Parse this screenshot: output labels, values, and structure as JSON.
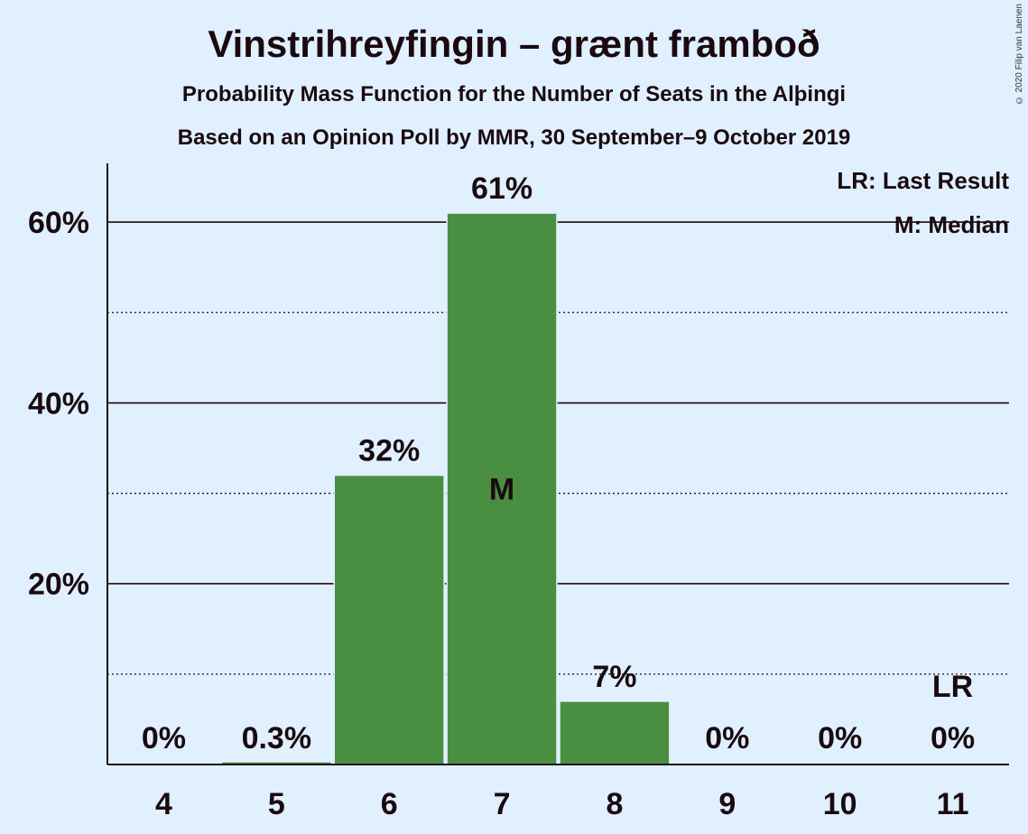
{
  "title": "Vinstrihreyfingin – grænt framboð",
  "subtitle": "Probability Mass Function for the Number of Seats in the Alþingi",
  "subtitle2": "Based on an Opinion Poll by MMR, 30 September–9 October 2019",
  "copyright": "© 2020 Filip van Laenen",
  "legend": {
    "last_result": "LR: Last Result",
    "median": "M: Median"
  },
  "colors": {
    "bar": "#4a8f41",
    "background": "#e1f0ff",
    "text": "#1a0a0f"
  },
  "chart_data": {
    "type": "bar",
    "categories": [
      "4",
      "5",
      "6",
      "7",
      "8",
      "9",
      "10",
      "11"
    ],
    "values": [
      0,
      0.3,
      32,
      61,
      7,
      0,
      0,
      0
    ],
    "value_labels": [
      "0%",
      "0.3%",
      "32%",
      "61%",
      "7%",
      "0%",
      "0%",
      "0%"
    ],
    "ylim": [
      0,
      66.5
    ],
    "y_ticks": [
      {
        "value": 20,
        "label": "20%"
      },
      {
        "value": 40,
        "label": "40%"
      },
      {
        "value": 60,
        "label": "60%"
      }
    ],
    "minor_gridlines": [
      10,
      30,
      50
    ],
    "median_category": "7",
    "median_label": "M",
    "last_result_category": "11",
    "last_result_label": "LR",
    "legend_position": "top-right"
  }
}
